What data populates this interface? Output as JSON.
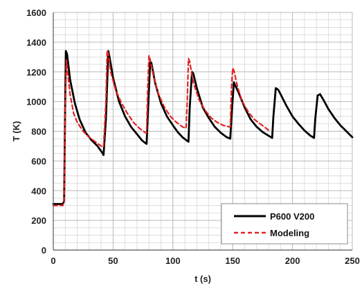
{
  "chart_data": {
    "type": "line",
    "xlabel": "t (s)",
    "ylabel": "T (K)",
    "xlim": [
      0,
      250
    ],
    "ylim": [
      0,
      1600
    ],
    "xticks": [
      0,
      50,
      100,
      150,
      200,
      250
    ],
    "yticks": [
      0,
      200,
      400,
      600,
      800,
      1000,
      1200,
      1400,
      1600
    ],
    "x_minor_step": 10,
    "y_minor_step": 50,
    "grid": true,
    "legend_position": "bottom-right",
    "series": [
      {
        "name": "P600 V200",
        "color": "#000000",
        "style": "solid",
        "points": [
          [
            0,
            310
          ],
          [
            5,
            310
          ],
          [
            8,
            310
          ],
          [
            9,
            330
          ],
          [
            10.5,
            1340
          ],
          [
            11.5,
            1320
          ],
          [
            14,
            1150
          ],
          [
            18,
            990
          ],
          [
            22,
            880
          ],
          [
            27,
            790
          ],
          [
            32,
            740
          ],
          [
            37,
            700
          ],
          [
            41,
            655
          ],
          [
            42,
            640
          ],
          [
            44,
            880
          ],
          [
            46,
            1340
          ],
          [
            47,
            1300
          ],
          [
            50,
            1160
          ],
          [
            55,
            1000
          ],
          [
            60,
            900
          ],
          [
            65,
            830
          ],
          [
            70,
            780
          ],
          [
            74,
            740
          ],
          [
            77,
            720
          ],
          [
            78,
            715
          ],
          [
            79,
            900
          ],
          [
            81,
            1270
          ],
          [
            82,
            1260
          ],
          [
            85,
            1130
          ],
          [
            90,
            990
          ],
          [
            95,
            900
          ],
          [
            100,
            840
          ],
          [
            104,
            795
          ],
          [
            108,
            760
          ],
          [
            112,
            735
          ],
          [
            113,
            730
          ],
          [
            114,
            950
          ],
          [
            116,
            1200
          ],
          [
            117,
            1190
          ],
          [
            120,
            1090
          ],
          [
            125,
            960
          ],
          [
            130,
            890
          ],
          [
            135,
            830
          ],
          [
            140,
            790
          ],
          [
            145,
            760
          ],
          [
            148,
            750
          ],
          [
            149,
            900
          ],
          [
            151,
            1130
          ],
          [
            152,
            1110
          ],
          [
            155,
            1060
          ],
          [
            160,
            960
          ],
          [
            165,
            880
          ],
          [
            170,
            830
          ],
          [
            175,
            795
          ],
          [
            180,
            770
          ],
          [
            183,
            755
          ],
          [
            184,
            900
          ],
          [
            186,
            1090
          ],
          [
            188,
            1080
          ],
          [
            190,
            1050
          ],
          [
            195,
            970
          ],
          [
            200,
            900
          ],
          [
            205,
            850
          ],
          [
            210,
            805
          ],
          [
            215,
            770
          ],
          [
            218,
            755
          ],
          [
            219,
            880
          ],
          [
            221,
            1040
          ],
          [
            223,
            1050
          ],
          [
            226,
            1010
          ],
          [
            230,
            950
          ],
          [
            235,
            890
          ],
          [
            240,
            840
          ],
          [
            245,
            800
          ],
          [
            250,
            760
          ]
        ]
      },
      {
        "name": "Modeling",
        "color": "#e32222",
        "style": "dashed",
        "points": [
          [
            0,
            300
          ],
          [
            8,
            300
          ],
          [
            9,
            330
          ],
          [
            10,
            950
          ],
          [
            11,
            1280
          ],
          [
            12,
            1200
          ],
          [
            14,
            1050
          ],
          [
            17,
            920
          ],
          [
            20,
            860
          ],
          [
            25,
            800
          ],
          [
            30,
            760
          ],
          [
            35,
            730
          ],
          [
            40,
            700
          ],
          [
            42,
            695
          ],
          [
            44,
            1000
          ],
          [
            45,
            1345
          ],
          [
            46,
            1320
          ],
          [
            48,
            1200
          ],
          [
            52,
            1080
          ],
          [
            57,
            990
          ],
          [
            62,
            920
          ],
          [
            67,
            860
          ],
          [
            72,
            820
          ],
          [
            77,
            790
          ],
          [
            78,
            790
          ],
          [
            79,
            1100
          ],
          [
            80,
            1310
          ],
          [
            81,
            1280
          ],
          [
            84,
            1160
          ],
          [
            88,
            1050
          ],
          [
            93,
            960
          ],
          [
            98,
            900
          ],
          [
            103,
            860
          ],
          [
            108,
            830
          ],
          [
            111,
            820
          ],
          [
            112,
            1000
          ],
          [
            113,
            1290
          ],
          [
            114,
            1270
          ],
          [
            117,
            1130
          ],
          [
            122,
            1010
          ],
          [
            127,
            940
          ],
          [
            132,
            890
          ],
          [
            137,
            860
          ],
          [
            142,
            840
          ],
          [
            147,
            830
          ],
          [
            148,
            830
          ],
          [
            149,
            1100
          ],
          [
            150,
            1225
          ],
          [
            151,
            1210
          ],
          [
            154,
            1100
          ],
          [
            158,
            1000
          ],
          [
            163,
            930
          ],
          [
            168,
            880
          ],
          [
            173,
            850
          ],
          [
            178,
            820
          ],
          [
            181,
            800
          ]
        ]
      }
    ]
  }
}
